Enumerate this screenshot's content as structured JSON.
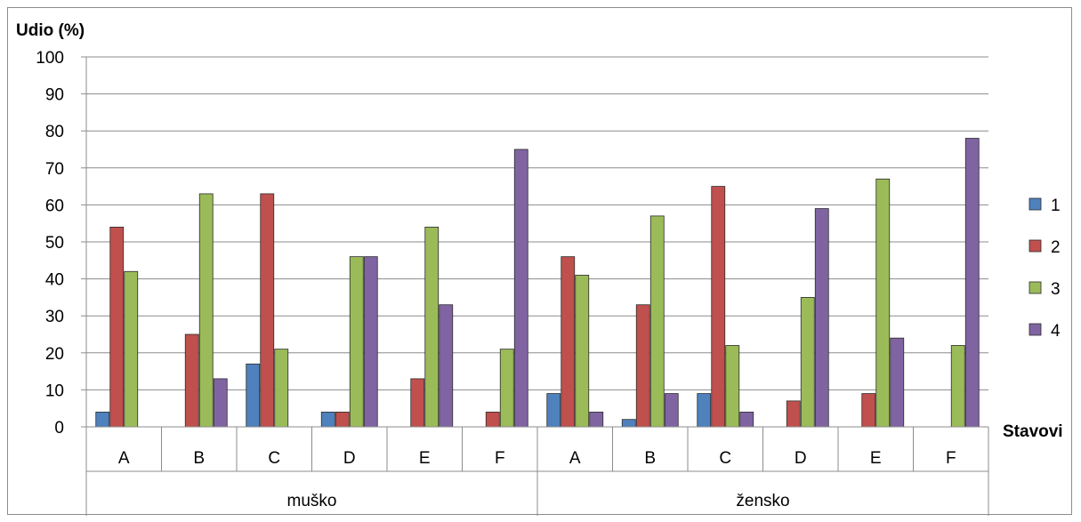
{
  "chart_data": {
    "type": "bar",
    "ylabel": "Udio (%)",
    "xlabel": "Stavovi",
    "ylim": [
      0,
      100
    ],
    "y_ticks": [
      0,
      10,
      20,
      30,
      40,
      50,
      60,
      70,
      80,
      90,
      100
    ],
    "grid": true,
    "legend_position": "right",
    "groups": [
      {
        "label": "muško",
        "categories": [
          "A",
          "B",
          "C",
          "D",
          "E",
          "F"
        ]
      },
      {
        "label": "žensko",
        "categories": [
          "A",
          "B",
          "C",
          "D",
          "E",
          "F"
        ]
      }
    ],
    "categories": [
      "A",
      "B",
      "C",
      "D",
      "E",
      "F",
      "A",
      "B",
      "C",
      "D",
      "E",
      "F"
    ],
    "series": [
      {
        "name": "1",
        "color": "#4f81bd",
        "values": [
          4,
          0,
          17,
          4,
          0,
          0,
          9,
          2,
          9,
          0,
          0,
          0
        ]
      },
      {
        "name": "2",
        "color": "#c0504d",
        "values": [
          54,
          25,
          63,
          4,
          13,
          4,
          46,
          33,
          65,
          7,
          9,
          0
        ]
      },
      {
        "name": "3",
        "color": "#9bbb59",
        "values": [
          42,
          63,
          21,
          46,
          54,
          21,
          41,
          57,
          22,
          35,
          67,
          22
        ]
      },
      {
        "name": "4",
        "color": "#8064a2",
        "values": [
          0,
          13,
          0,
          46,
          33,
          75,
          4,
          9,
          4,
          59,
          24,
          78
        ]
      }
    ]
  }
}
